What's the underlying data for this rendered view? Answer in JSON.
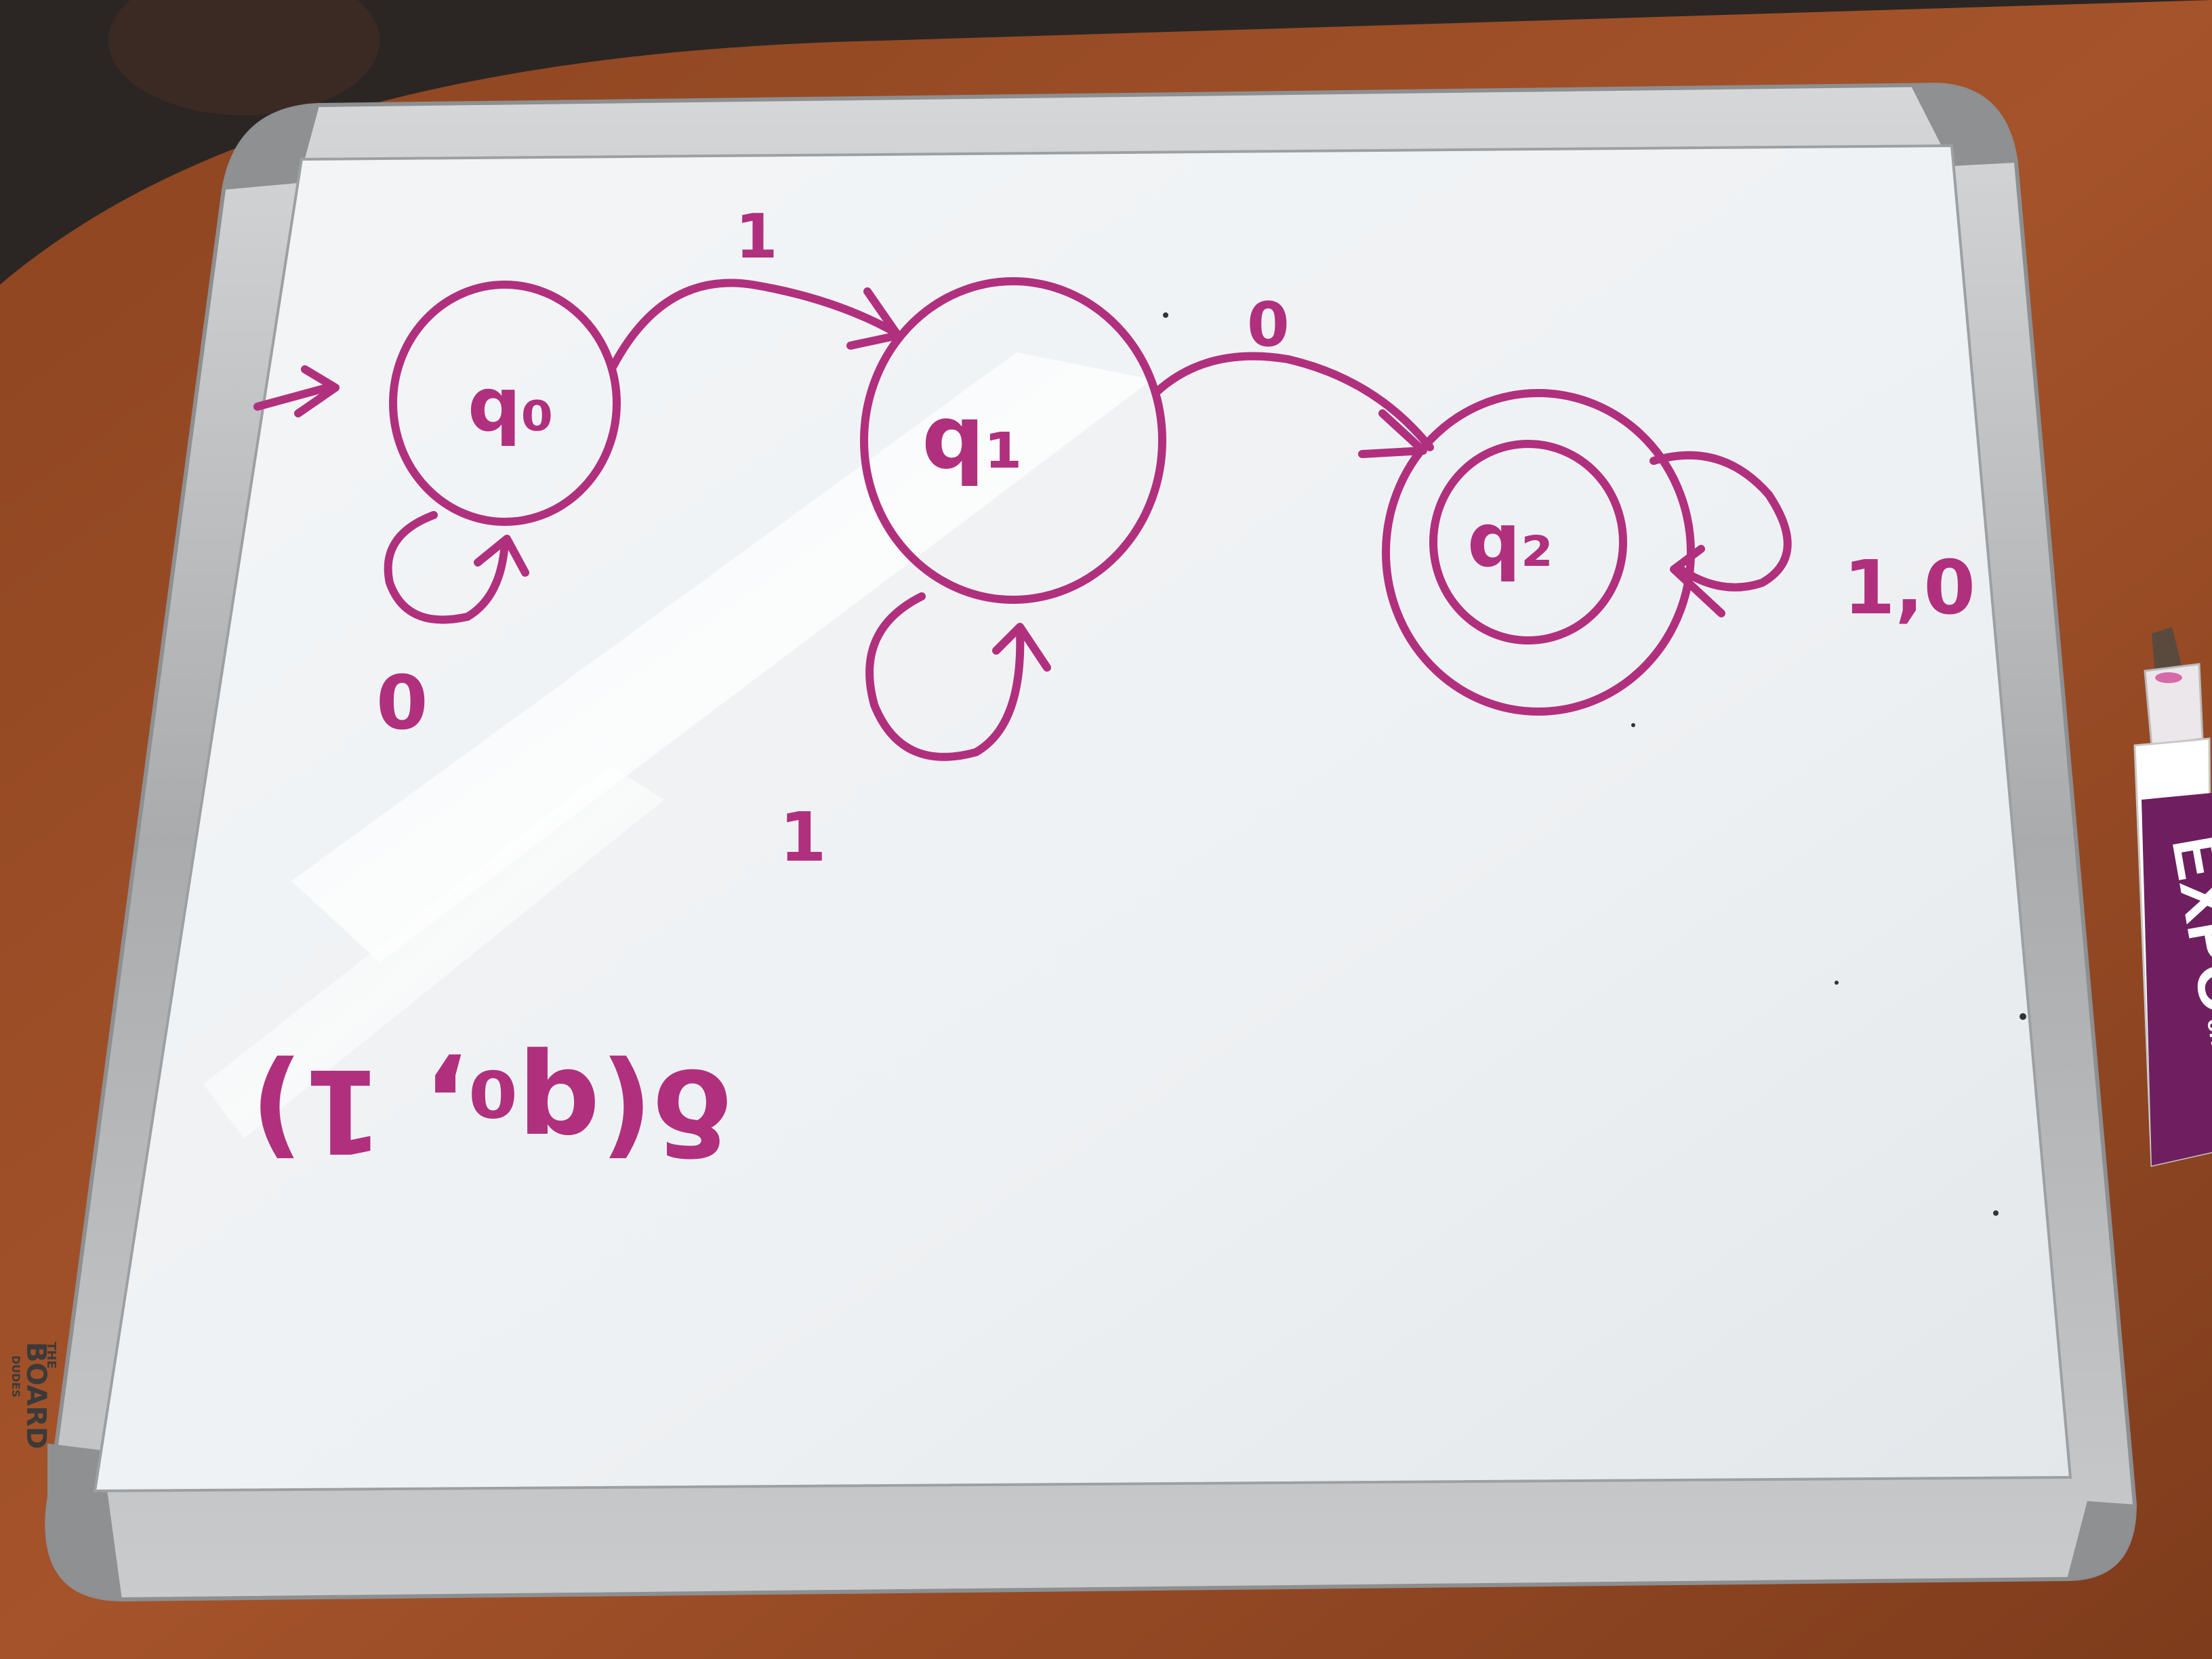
{
  "board": {
    "brand": {
      "small": "THE",
      "main": "BOARD",
      "sub": "DUDES"
    }
  },
  "diagram": {
    "states": [
      {
        "id": "q0",
        "label": "q₀",
        "start": true,
        "accepting": false
      },
      {
        "id": "q1",
        "label": "q₁",
        "start": false,
        "accepting": false
      },
      {
        "id": "q2",
        "label": "q₂",
        "start": false,
        "accepting": true
      }
    ],
    "transitions": [
      {
        "from": "q0",
        "to": "q1",
        "label": "1"
      },
      {
        "from": "q1",
        "to": "q2",
        "label": "0"
      },
      {
        "from": "q0",
        "to": "q0",
        "label": "0"
      },
      {
        "from": "q1",
        "to": "q1",
        "label": "1"
      },
      {
        "from": "q2",
        "to": "q2",
        "label": "1,0"
      }
    ],
    "note": "δ(q₀, 1)"
  },
  "marker": {
    "brand": "EXPO",
    "tip": "chisel",
    "cap_color": "#6f1f5f",
    "body_color": "#ffffff",
    "ink_color": "#b0307e"
  },
  "colors": {
    "ink": "#b0307e",
    "frame": "#b7b9bb",
    "surface": "#f1f4f6",
    "table": "#9b4a25"
  }
}
